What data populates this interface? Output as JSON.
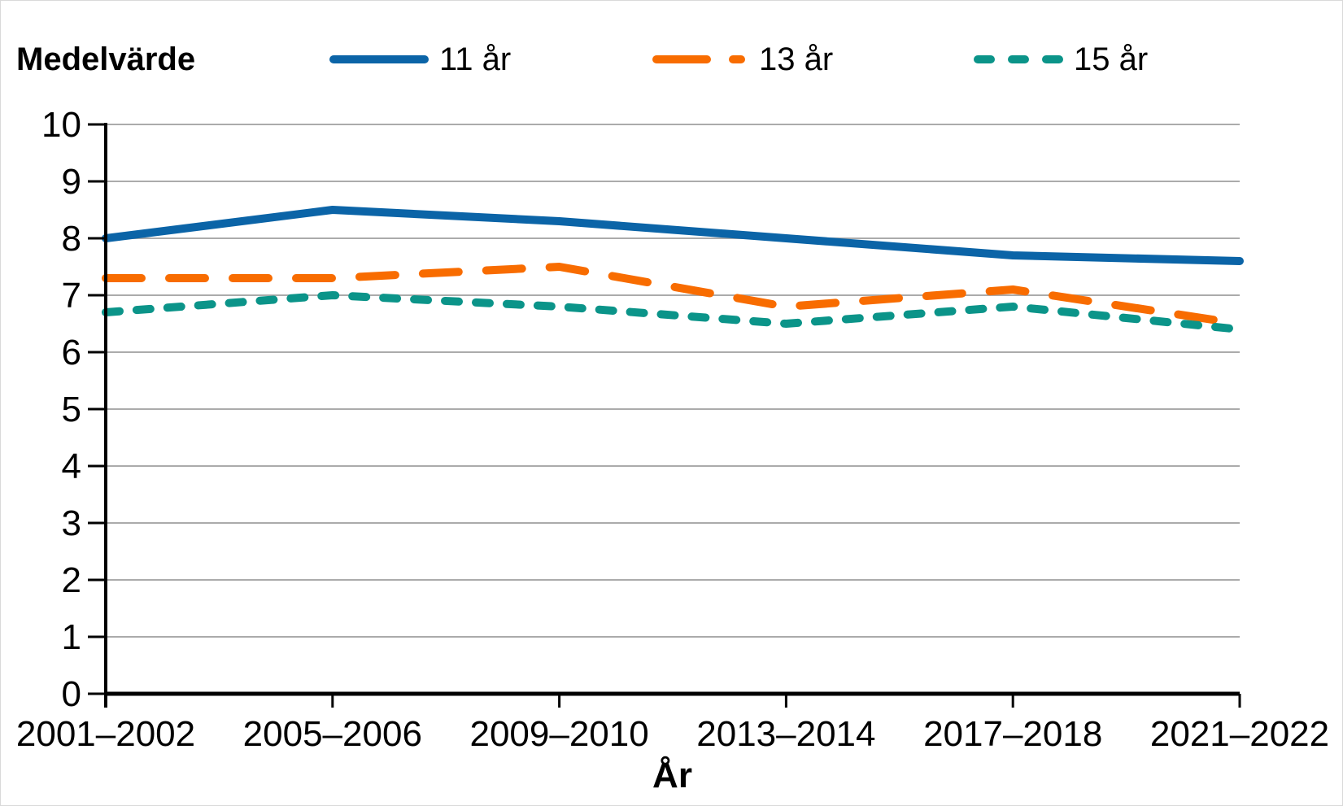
{
  "header": {
    "title": "Medelvärde"
  },
  "axes": {
    "x_title": "År"
  },
  "colors": {
    "series_blue": "#0B64A7",
    "series_orange": "#F86C00",
    "series_teal": "#0B9489",
    "gridline": "#ABABAB",
    "axis": "#000000",
    "text": "#000000",
    "background": "#FFFFFF"
  },
  "chart_data": {
    "type": "line",
    "title": "",
    "xlabel": "År",
    "ylabel": "Medelvärde",
    "categories": [
      "2001–2002",
      "2005–2006",
      "2009–2010",
      "2013–2014",
      "2017–2018",
      "2021–2022"
    ],
    "series": [
      {
        "name": "11 år",
        "color": "#0B64A7",
        "dash": "solid",
        "values": [
          8.0,
          8.5,
          8.3,
          8.0,
          7.7,
          7.6
        ]
      },
      {
        "name": "13 år",
        "color": "#F86C00",
        "dash": "long-dash",
        "values": [
          7.3,
          7.3,
          7.5,
          6.8,
          7.1,
          6.5
        ]
      },
      {
        "name": "15 år",
        "color": "#0B9489",
        "dash": "short-dash",
        "values": [
          6.7,
          7.0,
          6.8,
          6.5,
          6.8,
          6.4
        ]
      }
    ],
    "ylim": [
      0,
      10
    ],
    "yticks": [
      0,
      1,
      2,
      3,
      4,
      5,
      6,
      7,
      8,
      9,
      10
    ],
    "grid": "horizontal",
    "legend_position": "top"
  }
}
